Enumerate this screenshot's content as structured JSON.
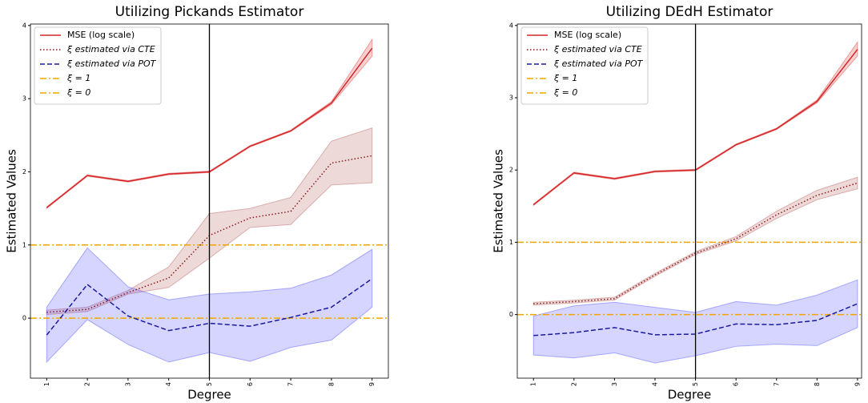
{
  "chart_data": [
    {
      "type": "line",
      "title": "Utilizing Pickands Estimator",
      "xlabel": "Degree",
      "ylabel": "Estimated Values",
      "x": [
        1,
        2,
        3,
        4,
        5,
        6,
        7,
        8,
        9
      ],
      "xlim": [
        0.6,
        9.4
      ],
      "xticks": [
        1,
        2,
        3,
        4,
        5,
        6,
        7,
        8,
        9
      ],
      "ylim": [
        -0.82,
        4.02
      ],
      "yticks": [
        0,
        1,
        2,
        3,
        4
      ],
      "vline": 5,
      "series": [
        {
          "name": "MSE (log scale)",
          "color": "#d62728",
          "band_color": "#d62728",
          "linestyle": "solid",
          "values": [
            1.51,
            1.95,
            1.87,
            1.97,
            2.0,
            2.35,
            2.56,
            2.94,
            3.69
          ],
          "lower": [
            1.5,
            1.94,
            1.86,
            1.96,
            1.99,
            2.34,
            2.55,
            2.92,
            3.58
          ],
          "upper": [
            1.52,
            1.96,
            1.88,
            1.98,
            2.01,
            2.36,
            2.57,
            2.96,
            3.81
          ]
        },
        {
          "name": "ξ estimated via CTE",
          "color": "#8b1a1a",
          "band_color": "#b05050",
          "linestyle": "dotted",
          "values": [
            0.08,
            0.12,
            0.35,
            0.55,
            1.13,
            1.37,
            1.46,
            2.12,
            2.22
          ],
          "lower": [
            0.05,
            0.09,
            0.33,
            0.42,
            0.82,
            1.24,
            1.28,
            1.82,
            1.85
          ],
          "upper": [
            0.11,
            0.15,
            0.38,
            0.7,
            1.43,
            1.5,
            1.65,
            2.42,
            2.6
          ]
        },
        {
          "name": "ξ estimated via POT",
          "color": "#1a1a9c",
          "band_color": "#4040ff",
          "linestyle": "dashed",
          "values": [
            -0.23,
            0.46,
            0.03,
            -0.17,
            -0.07,
            -0.11,
            0.01,
            0.15,
            0.54
          ],
          "lower": [
            -0.6,
            -0.02,
            -0.36,
            -0.6,
            -0.47,
            -0.59,
            -0.4,
            -0.3,
            0.15
          ],
          "upper": [
            0.15,
            0.96,
            0.43,
            0.25,
            0.33,
            0.36,
            0.41,
            0.59,
            0.94
          ]
        }
      ],
      "hlines": [
        {
          "name": "ξ = 1",
          "color": "#f0a500",
          "value": 1
        },
        {
          "name": "ξ = 0",
          "color": "#f0a500",
          "value": 0
        }
      ]
    },
    {
      "type": "line",
      "title": "Utilizing DEdH Estimator",
      "xlabel": "Degree",
      "ylabel": "Estimated Values",
      "x": [
        1,
        2,
        3,
        4,
        5,
        6,
        7,
        8,
        9
      ],
      "xlim": [
        0.6,
        9.1
      ],
      "xticks": [
        1,
        2,
        3,
        4,
        5,
        6,
        7,
        8,
        9
      ],
      "ylim": [
        -0.88,
        4.02
      ],
      "yticks": [
        0,
        1,
        2,
        3,
        4
      ],
      "vline": 5,
      "series": [
        {
          "name": "MSE (log scale)",
          "color": "#d62728",
          "band_color": "#d62728",
          "linestyle": "solid",
          "values": [
            1.52,
            1.96,
            1.88,
            1.98,
            2.0,
            2.35,
            2.57,
            2.95,
            3.67
          ],
          "lower": [
            1.51,
            1.95,
            1.87,
            1.97,
            1.99,
            2.34,
            2.56,
            2.93,
            3.58
          ],
          "upper": [
            1.53,
            1.97,
            1.89,
            1.99,
            2.01,
            2.36,
            2.58,
            2.97,
            3.77
          ]
        },
        {
          "name": "ξ estimated via CTE",
          "color": "#8b1a1a",
          "band_color": "#b05050",
          "linestyle": "dotted",
          "values": [
            0.15,
            0.18,
            0.22,
            0.55,
            0.85,
            1.05,
            1.38,
            1.65,
            1.82
          ],
          "lower": [
            0.13,
            0.16,
            0.2,
            0.53,
            0.83,
            1.02,
            1.33,
            1.59,
            1.74
          ],
          "upper": [
            0.17,
            0.2,
            0.24,
            0.57,
            0.87,
            1.08,
            1.43,
            1.72,
            1.9
          ]
        },
        {
          "name": "ξ estimated via POT",
          "color": "#1a1a9c",
          "band_color": "#4040ff",
          "linestyle": "dashed",
          "values": [
            -0.29,
            -0.25,
            -0.18,
            -0.28,
            -0.27,
            -0.13,
            -0.14,
            -0.08,
            0.15
          ],
          "lower": [
            -0.56,
            -0.6,
            -0.53,
            -0.67,
            -0.57,
            -0.44,
            -0.41,
            -0.43,
            -0.18
          ],
          "upper": [
            -0.02,
            0.12,
            0.17,
            0.1,
            0.03,
            0.18,
            0.13,
            0.27,
            0.48
          ]
        }
      ],
      "hlines": [
        {
          "name": "ξ = 1",
          "color": "#f0a500",
          "value": 1
        },
        {
          "name": "ξ = 0",
          "color": "#f0a500",
          "value": 0
        }
      ]
    }
  ]
}
